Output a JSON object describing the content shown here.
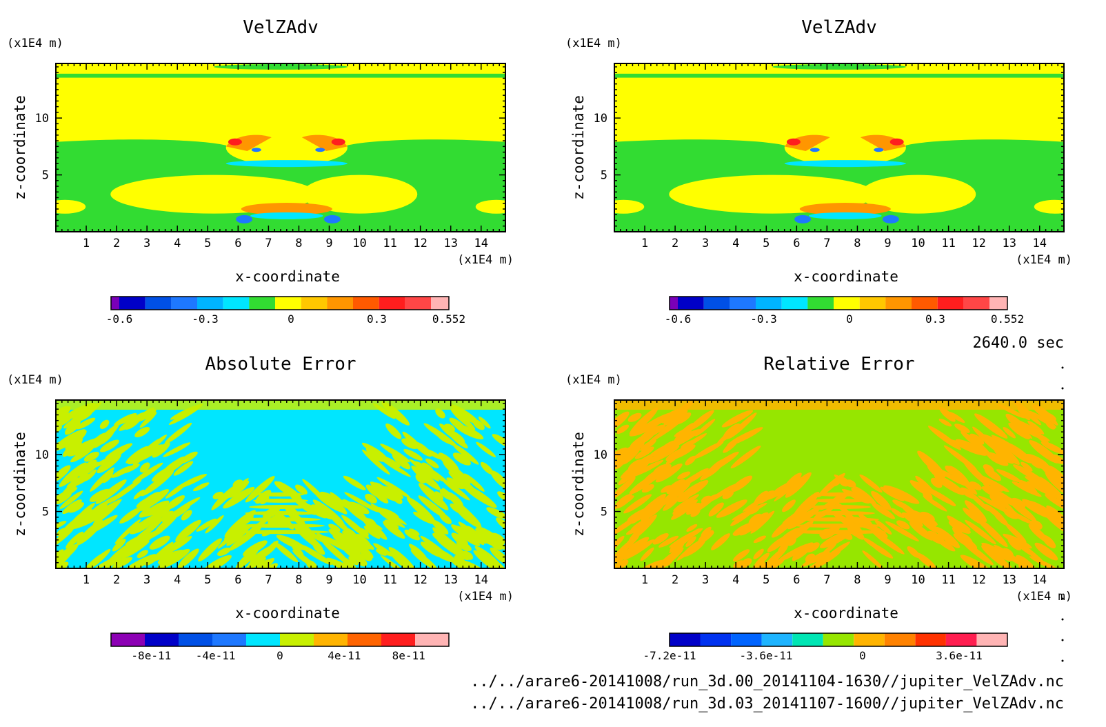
{
  "time_label": "2640.0 sec",
  "files": [
    "../../arare6-20141008/run_3d.00_20141104-1630//jupiter_VelZAdv.nc",
    "../../arare6-20141008/run_3d.03_20141107-1600//jupiter_VelZAdv.nc"
  ],
  "chart_data": [
    {
      "type": "heatmap",
      "title": "VelZAdv",
      "xlabel": "x-coordinate",
      "ylabel": "z-coordinate",
      "x_unit": "(x1E4 m)",
      "y_unit": "(x1E4 m)",
      "xlim": [
        0,
        14.8
      ],
      "ylim": [
        0,
        14.8
      ],
      "x_ticks": [
        1,
        2,
        3,
        4,
        5,
        6,
        7,
        8,
        9,
        10,
        11,
        12,
        13,
        14
      ],
      "y_ticks": [
        5,
        10
      ],
      "colorbar": {
        "labels": [
          "-0.6",
          "-0.3",
          "0",
          "0.3",
          "0.552"
        ],
        "label_values": [
          -0.6,
          -0.3,
          0,
          0.3,
          0.552
        ],
        "range": [
          -0.6,
          0.552
        ],
        "colors": [
          "#7a00b8",
          "#0000c8",
          "#0050e6",
          "#1e78ff",
          "#00b4ff",
          "#00e6ff",
          "#32dc32",
          "#ffff00",
          "#ffc800",
          "#ff9600",
          "#ff5a00",
          "#ff1e1e",
          "#ff4646",
          "#ffb4b4"
        ]
      },
      "field_colors": {
        "background": "#ffff00",
        "low": "#32dc32",
        "cold": "#00e6ff",
        "warm": "#ff9600",
        "hot": "#ff1e1e",
        "deep": "#1e78ff"
      }
    },
    {
      "type": "heatmap",
      "title": "VelZAdv",
      "xlabel": "x-coordinate",
      "ylabel": "z-coordinate",
      "x_unit": "(x1E4 m)",
      "y_unit": "(x1E4 m)",
      "xlim": [
        0,
        14.8
      ],
      "ylim": [
        0,
        14.8
      ],
      "x_ticks": [
        1,
        2,
        3,
        4,
        5,
        6,
        7,
        8,
        9,
        10,
        11,
        12,
        13,
        14
      ],
      "y_ticks": [
        5,
        10
      ],
      "colorbar": {
        "labels": [
          "-0.6",
          "-0.3",
          "0",
          "0.3",
          "0.552"
        ],
        "label_values": [
          -0.6,
          -0.3,
          0,
          0.3,
          0.552
        ],
        "range": [
          -0.6,
          0.552
        ],
        "colors": [
          "#7a00b8",
          "#0000c8",
          "#0050e6",
          "#1e78ff",
          "#00b4ff",
          "#00e6ff",
          "#32dc32",
          "#ffff00",
          "#ffc800",
          "#ff9600",
          "#ff5a00",
          "#ff1e1e",
          "#ff4646",
          "#ffb4b4"
        ]
      },
      "field_colors": {
        "background": "#ffff00",
        "low": "#32dc32",
        "cold": "#00e6ff",
        "warm": "#ff9600",
        "hot": "#ff1e1e",
        "deep": "#1e78ff"
      }
    },
    {
      "type": "heatmap",
      "title": "Absolute Error",
      "xlabel": "x-coordinate",
      "ylabel": "z-coordinate",
      "x_unit": "(x1E4 m)",
      "y_unit": "(x1E4 m)",
      "xlim": [
        0,
        14.8
      ],
      "ylim": [
        0,
        14.8
      ],
      "x_ticks": [
        1,
        2,
        3,
        4,
        5,
        6,
        7,
        8,
        9,
        10,
        11,
        12,
        13,
        14
      ],
      "y_ticks": [
        5,
        10
      ],
      "colorbar": {
        "labels": [
          "-8e-11",
          "-4e-11",
          "0",
          "4e-11",
          "8e-11"
        ],
        "label_values": [
          -8e-11,
          -4e-11,
          0,
          4e-11,
          8e-11
        ],
        "range": [
          -1.05e-10,
          1.05e-10
        ],
        "colors": [
          "#8c00b4",
          "#0000c8",
          "#0050e6",
          "#1e78ff",
          "#00e6ff",
          "#c8f000",
          "#ffb400",
          "#ff6400",
          "#ff1e1e",
          "#ffb4b4"
        ]
      },
      "field_colors": {
        "background": "#00e6ff",
        "stripe": "#c8f000"
      }
    },
    {
      "type": "heatmap",
      "title": "Relative Error",
      "xlabel": "x-coordinate",
      "ylabel": "z-coordinate",
      "x_unit": "(x1E4 m)",
      "y_unit": "(x1E4 m)",
      "xlim": [
        0,
        14.8
      ],
      "ylim": [
        0,
        14.8
      ],
      "x_ticks": [
        1,
        2,
        3,
        4,
        5,
        6,
        7,
        8,
        9,
        10,
        11,
        12,
        13,
        14
      ],
      "y_ticks": [
        5,
        10
      ],
      "colorbar": {
        "labels": [
          "-7.2e-11",
          "-3.6e-11",
          "0",
          "3.6e-11"
        ],
        "label_values": [
          -7.2e-11,
          -3.6e-11,
          0,
          3.6e-11
        ],
        "range": [
          -7.2e-11,
          5.4e-11
        ],
        "colors": [
          "#0000c8",
          "#0032f0",
          "#0064ff",
          "#1eb4ff",
          "#00e6b4",
          "#96e600",
          "#ffb400",
          "#ff8200",
          "#ff3200",
          "#ff1e50",
          "#ffb4b4"
        ]
      },
      "field_colors": {
        "background": "#96e600",
        "stripe": "#ffb400"
      }
    }
  ]
}
